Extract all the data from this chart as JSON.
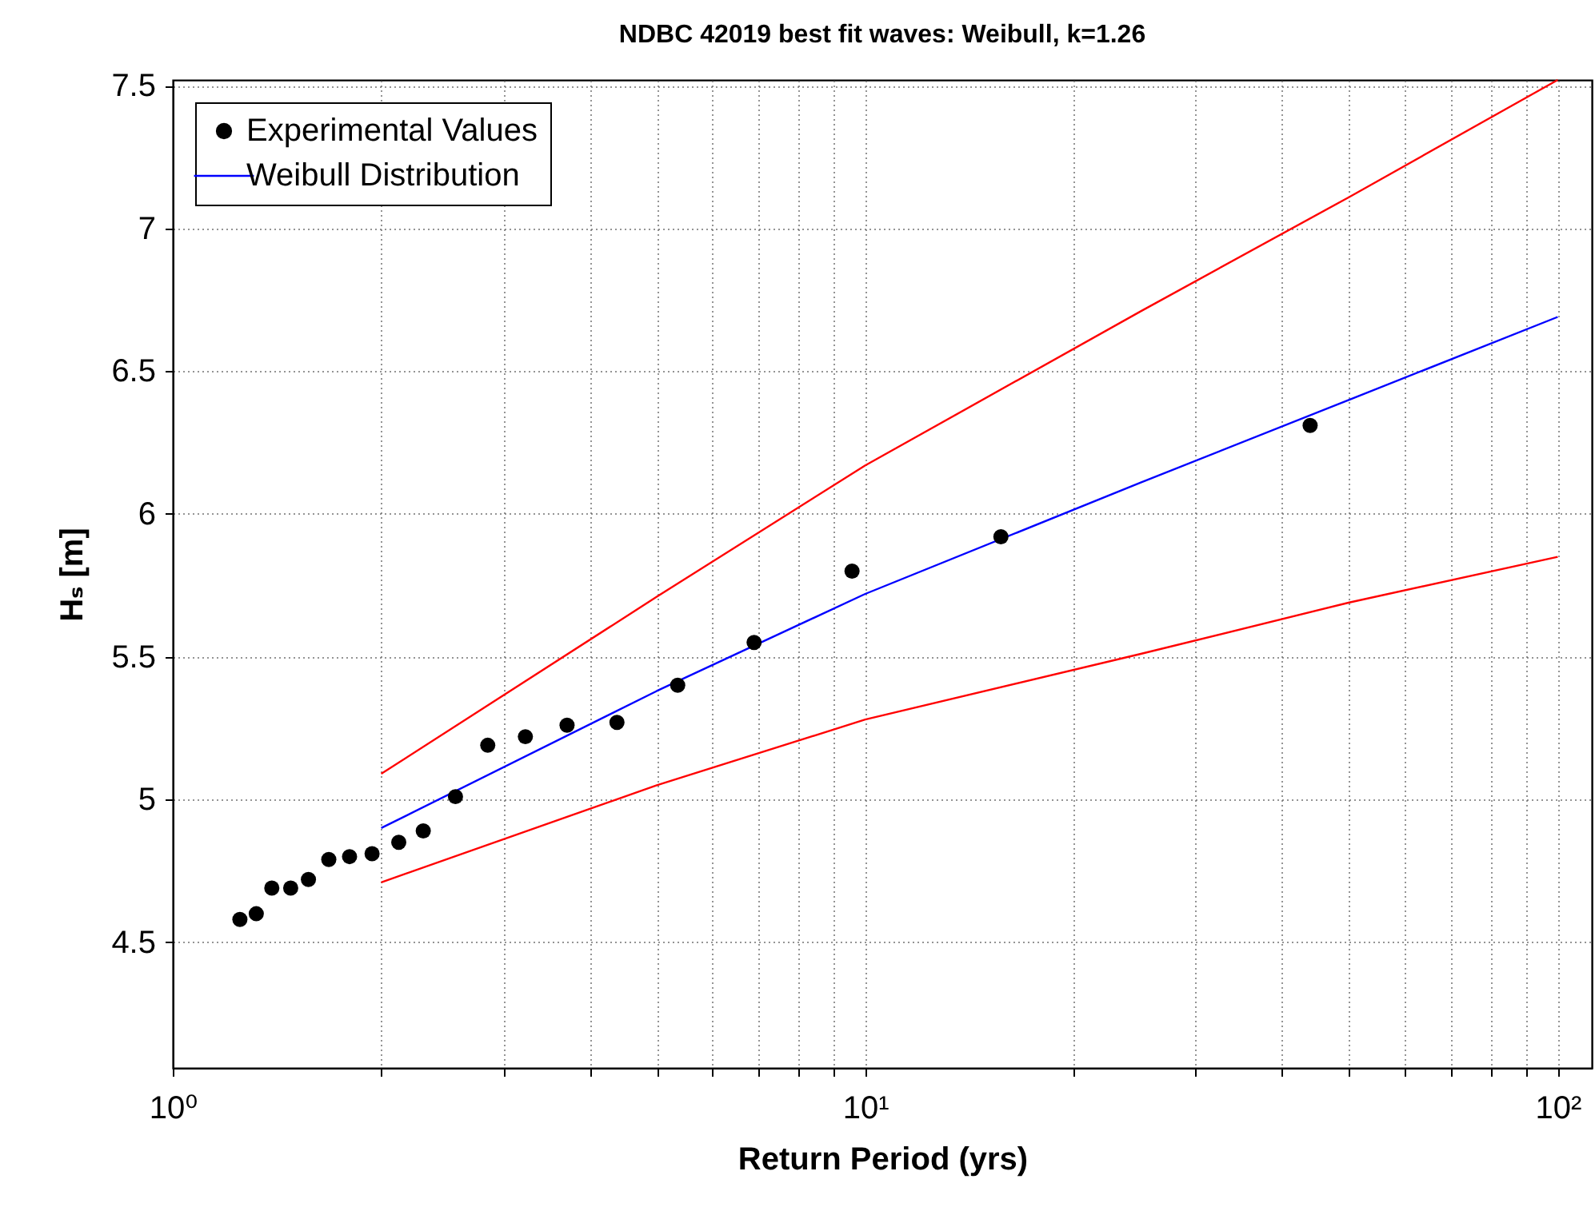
{
  "chart_data": {
    "type": "scatter",
    "title": "NDBC 42019 best fit waves: Weibull, k=1.26",
    "xlabel": "Return Period (yrs)",
    "ylabel": "Hₛ [m]",
    "log": "x",
    "grid": true,
    "legend": "top left",
    "line_style": "solid",
    "xlim": [
      1,
      112
    ],
    "ylim": [
      4.06,
      7.52
    ],
    "xticks": [
      {
        "value": 1,
        "label": "10⁰"
      },
      {
        "value": 2,
        "label": null
      },
      {
        "value": 3,
        "label": null
      },
      {
        "value": 4,
        "label": null
      },
      {
        "value": 5,
        "label": null
      },
      {
        "value": 6,
        "label": null
      },
      {
        "value": 7,
        "label": null
      },
      {
        "value": 8,
        "label": null
      },
      {
        "value": 9,
        "label": null
      },
      {
        "value": 10,
        "label": "10¹"
      },
      {
        "value": 20,
        "label": null
      },
      {
        "value": 30,
        "label": null
      },
      {
        "value": 40,
        "label": null
      },
      {
        "value": 50,
        "label": null
      },
      {
        "value": 60,
        "label": null
      },
      {
        "value": 70,
        "label": null
      },
      {
        "value": 80,
        "label": null
      },
      {
        "value": 90,
        "label": null
      },
      {
        "value": 100,
        "label": "10²"
      }
    ],
    "yticks": [
      4.5,
      5,
      5.5,
      6,
      6.5,
      7,
      7.5
    ],
    "series": [
      {
        "name": "Experimental Values",
        "marker": "circle",
        "color": "#000000",
        "x": [
          1.25,
          1.32,
          1.39,
          1.48,
          1.57,
          1.68,
          1.8,
          1.94,
          2.12,
          2.3,
          2.56,
          2.85,
          3.23,
          3.71,
          4.38,
          5.36,
          6.91,
          9.57,
          15.7,
          43.9
        ],
        "values": [
          4.58,
          4.6,
          4.69,
          4.69,
          4.72,
          4.79,
          4.8,
          4.81,
          4.85,
          4.89,
          5.01,
          5.19,
          5.22,
          5.26,
          5.27,
          5.4,
          5.55,
          5.8,
          5.92,
          6.31
        ]
      },
      {
        "type": "line",
        "color": "#ff0000",
        "x": [
          2,
          5,
          10,
          25,
          50,
          100
        ],
        "values": [
          5.09,
          5.71,
          6.17,
          6.71,
          7.11,
          7.52
        ]
      },
      {
        "type": "line",
        "color": "#ff0000",
        "x": [
          2,
          5,
          10,
          25,
          50,
          100
        ],
        "values": [
          4.71,
          5.05,
          5.28,
          5.51,
          5.69,
          5.85
        ]
      },
      {
        "name": "Weibull Distribution",
        "type": "line",
        "color": "#0000ff",
        "x": [
          2,
          5,
          10,
          25,
          50,
          100
        ],
        "values": [
          4.9,
          5.38,
          5.72,
          6.11,
          6.4,
          6.69
        ]
      }
    ]
  }
}
